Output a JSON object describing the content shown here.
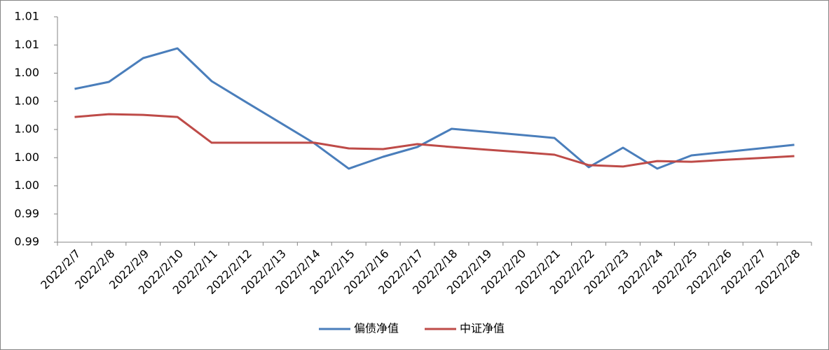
{
  "chart_data": {
    "type": "line",
    "categories": [
      "2022/2/7",
      "2022/2/8",
      "2022/2/9",
      "2022/2/10",
      "2022/2/11",
      "2022/2/12",
      "2022/2/13",
      "2022/2/14",
      "2022/2/15",
      "2022/2/16",
      "2022/2/17",
      "2022/2/18",
      "2022/2/19",
      "2022/2/20",
      "2022/2/21",
      "2022/2/22",
      "2022/2/23",
      "2022/2/24",
      "2022/2/25",
      "2022/2/26",
      "2022/2/27",
      "2022/2/28"
    ],
    "series": [
      {
        "name": "偏债净值",
        "color": "#4a7ebb",
        "values": [
          1.00288,
          1.00338,
          1.00507,
          1.00576,
          1.00343,
          1.00195,
          1.00048,
          0.99901,
          0.99722,
          0.99806,
          0.99876,
          1.00005,
          0.99984,
          0.99962,
          0.9994,
          0.99732,
          0.99871,
          0.99722,
          0.99816,
          0.99841,
          0.99866,
          0.99891
        ]
      },
      {
        "name": "中证净值",
        "color": "#be4b48",
        "values": [
          1.00089,
          1.00109,
          1.00104,
          1.00089,
          0.99906,
          0.99906,
          0.99906,
          0.99906,
          0.99866,
          0.99861,
          0.99896,
          0.99876,
          0.99857,
          0.9984,
          0.99821,
          0.99747,
          0.99737,
          0.99776,
          0.99771,
          0.99785,
          0.99798,
          0.99811
        ]
      }
    ],
    "ylim": [
      0.992,
      1.008
    ],
    "yticks": [
      {
        "value": 1.008,
        "label": "1.01"
      },
      {
        "value": 1.006,
        "label": "1.01"
      },
      {
        "value": 1.004,
        "label": "1.00"
      },
      {
        "value": 1.002,
        "label": "1.00"
      },
      {
        "value": 1.0,
        "label": "1.00"
      },
      {
        "value": 0.998,
        "label": "1.00"
      },
      {
        "value": 0.996,
        "label": "1.00"
      },
      {
        "value": 0.994,
        "label": "0.99"
      },
      {
        "value": 0.992,
        "label": "0.99"
      }
    ],
    "grid": false,
    "legend": "bottom"
  }
}
